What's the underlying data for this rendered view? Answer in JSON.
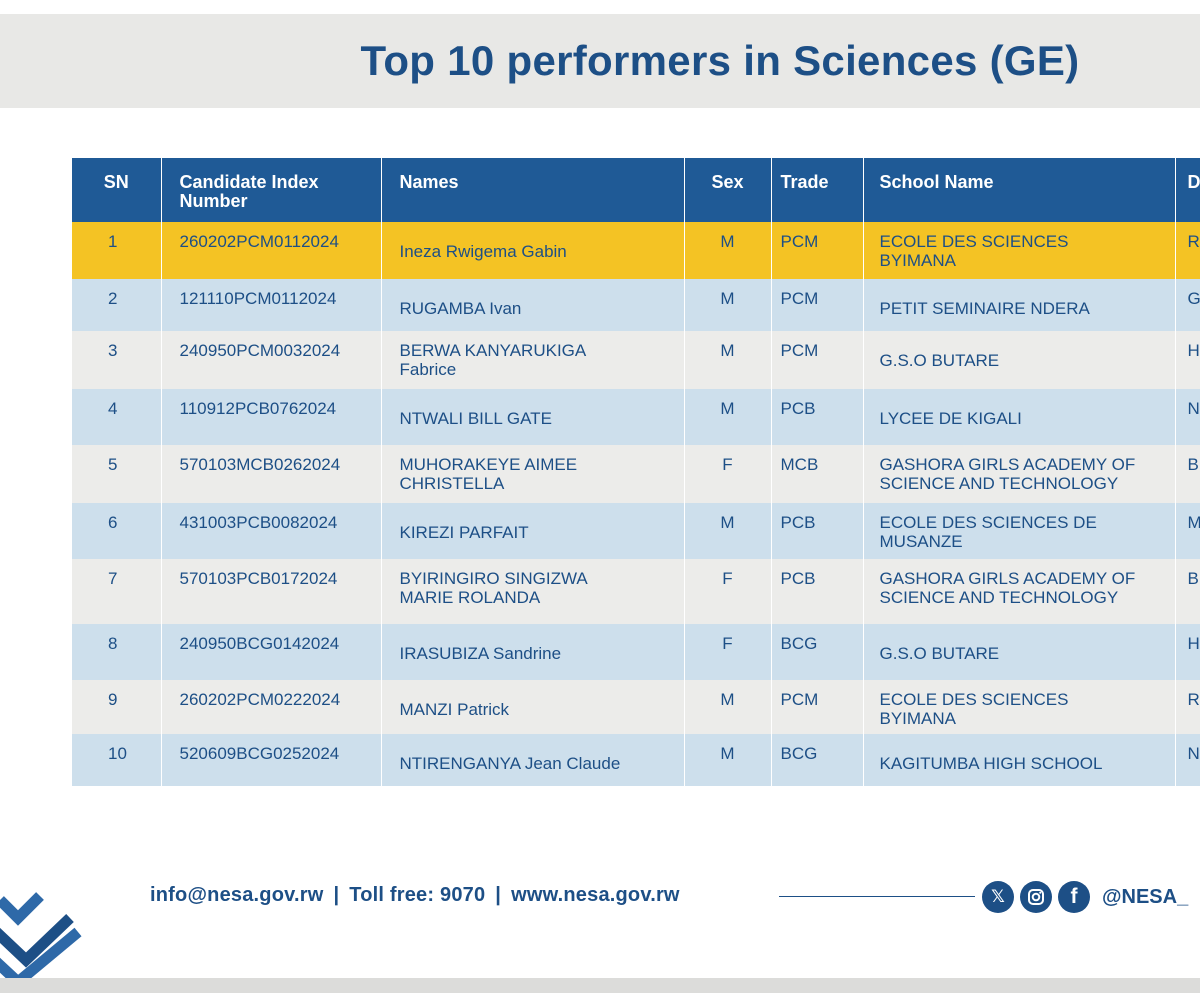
{
  "title": "Top 10 performers in Sciences (GE)",
  "colors": {
    "brand_blue": "#1d4f86",
    "header_blue": "#1f5a96",
    "highlight_gold": "#f4c324",
    "row_blue": "#cddfec",
    "row_grey": "#ececea"
  },
  "table": {
    "headers": {
      "sn": "SN",
      "index_line1": "Candidate Index",
      "index_line2": "Number",
      "names": "Names",
      "sex": "Sex",
      "trade": "Trade",
      "school": "School Name",
      "district": "D"
    },
    "rows": [
      {
        "sn": "1",
        "index": "260202PCM0112024",
        "name1": "Ineza Rwigema Gabin",
        "name2": "",
        "sex": "M",
        "trade": "PCM",
        "school1": "ECOLE DES SCIENCES",
        "school2": "BYIMANA",
        "district": "R"
      },
      {
        "sn": "2",
        "index": "121110PCM0112024",
        "name1": "RUGAMBA Ivan",
        "name2": "",
        "sex": "M",
        "trade": "PCM",
        "school1": "PETIT SEMINAIRE NDERA",
        "school2": "",
        "district": "G"
      },
      {
        "sn": "3",
        "index": "240950PCM0032024",
        "name1": "BERWA KANYARUKIGA",
        "name2": "Fabrice",
        "sex": "M",
        "trade": "PCM",
        "school1": "G.S.O  BUTARE",
        "school2": "",
        "district": "H"
      },
      {
        "sn": "4",
        "index": "110912PCB0762024",
        "name1": "NTWALI BILL GATE",
        "name2": "",
        "sex": "M",
        "trade": "PCB",
        "school1": "LYCEE DE KIGALI",
        "school2": "",
        "district": "N"
      },
      {
        "sn": "5",
        "index": "570103MCB0262024",
        "name1": "MUHORAKEYE AIMEE",
        "name2": "CHRISTELLA",
        "sex": "F",
        "trade": "MCB",
        "school1": "GASHORA GIRLS ACADEMY OF",
        "school2": "SCIENCE AND TECHNOLOGY",
        "district": "B"
      },
      {
        "sn": "6",
        "index": "431003PCB0082024",
        "name1": "KIREZI PARFAIT",
        "name2": "",
        "sex": "M",
        "trade": "PCB",
        "school1": "ECOLE DES SCIENCES DE",
        "school2": "MUSANZE",
        "district": "M"
      },
      {
        "sn": "7",
        "index": "570103PCB0172024",
        "name1": "BYIRINGIRO SINGIZWA",
        "name2": "MARIE ROLANDA",
        "sex": "F",
        "trade": "PCB",
        "school1": "GASHORA GIRLS ACADEMY OF",
        "school2": "SCIENCE AND TECHNOLOGY",
        "district": "B"
      },
      {
        "sn": "8",
        "index": "240950BCG0142024",
        "name1": "IRASUBIZA Sandrine",
        "name2": "",
        "sex": "F",
        "trade": "BCG",
        "school1": "G.S.O  BUTARE",
        "school2": "",
        "district": "H"
      },
      {
        "sn": "9",
        "index": "260202PCM0222024",
        "name1": "MANZI Patrick",
        "name2": "",
        "sex": "M",
        "trade": "PCM",
        "school1": "ECOLE DES SCIENCES",
        "school2": "BYIMANA",
        "district": "R"
      },
      {
        "sn": "10",
        "index": "520609BCG0252024",
        "name1": "NTIRENGANYA Jean Claude",
        "name2": "",
        "sex": "M",
        "trade": "BCG",
        "school1": "KAGITUMBA HIGH SCHOOL",
        "school2": "",
        "district": "N"
      }
    ]
  },
  "footer": {
    "email": "info@nesa.gov.rw",
    "separator": "|",
    "tollfree": "Toll free: 9070",
    "website": "www.nesa.gov.rw",
    "handle": "@NESA_",
    "icons": {
      "x": "x-twitter-icon",
      "instagram": "instagram-icon",
      "facebook": "facebook-icon"
    }
  }
}
